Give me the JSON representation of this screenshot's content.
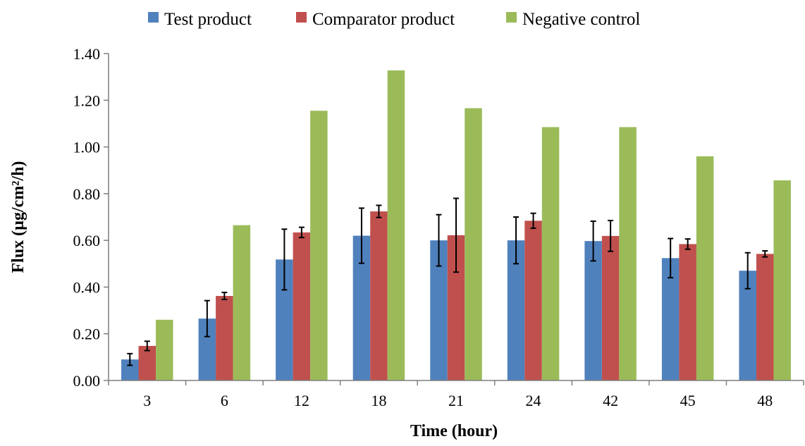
{
  "chart_data": {
    "type": "bar",
    "xlabel": "Time (hour)",
    "ylabel": "Flux (µg/cm²/h)",
    "ylim": [
      0,
      1.4
    ],
    "ytick_step": 0.2,
    "yticks": [
      "0.00",
      "0.20",
      "0.40",
      "0.60",
      "0.80",
      "1.00",
      "1.20",
      "1.40"
    ],
    "categories": [
      "3",
      "6",
      "12",
      "18",
      "21",
      "24",
      "42",
      "45",
      "48"
    ],
    "legend_position": "top",
    "grid": false,
    "series": [
      {
        "name": "Test product",
        "color": "#4F81BD",
        "values": [
          0.09,
          0.265,
          0.518,
          0.62,
          0.6,
          0.6,
          0.597,
          0.524,
          0.47
        ],
        "errors": [
          0.025,
          0.077,
          0.13,
          0.118,
          0.11,
          0.1,
          0.085,
          0.084,
          0.077
        ]
      },
      {
        "name": "Comparator product",
        "color": "#C0504D",
        "values": [
          0.148,
          0.362,
          0.634,
          0.724,
          0.622,
          0.684,
          0.619,
          0.584,
          0.542
        ],
        "errors": [
          0.02,
          0.015,
          0.022,
          0.026,
          0.158,
          0.032,
          0.066,
          0.022,
          0.013
        ]
      },
      {
        "name": "Negative control",
        "color": "#9BBB59",
        "values": [
          0.26,
          0.665,
          1.155,
          1.328,
          1.166,
          1.085,
          1.085,
          0.96,
          0.857
        ],
        "errors": null
      }
    ]
  }
}
